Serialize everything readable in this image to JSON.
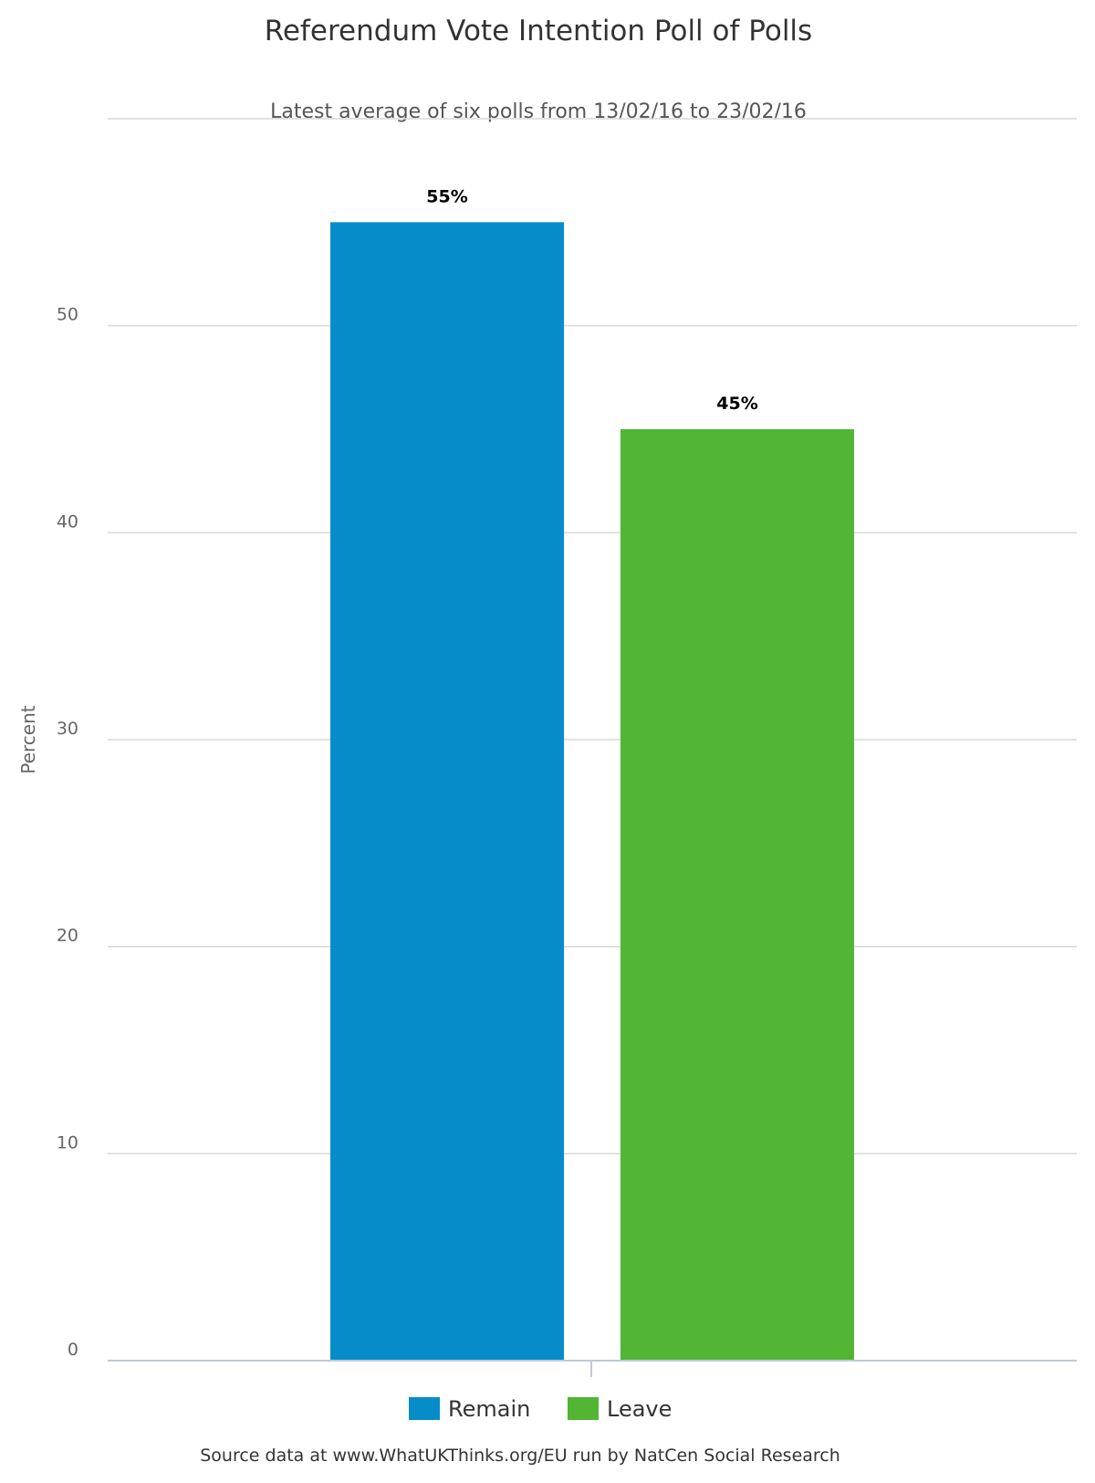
{
  "chart_data": {
    "type": "bar",
    "title": "Referendum Vote Intention Poll of Polls",
    "subtitle": "Latest average of six polls from 13/02/16 to 23/02/16",
    "ylabel": "Percent",
    "xlabel": "",
    "ylim": [
      0,
      60
    ],
    "yticks": [
      0,
      10,
      20,
      30,
      40,
      50
    ],
    "grid": true,
    "legend_position": "bottom",
    "series": [
      {
        "name": "Remain",
        "value": 55,
        "label": "55%",
        "color": "#068dc9"
      },
      {
        "name": "Leave",
        "value": 45,
        "label": "45%",
        "color": "#53b534"
      }
    ],
    "source": "Source data at www.WhatUKThinks.org/EU run by NatCen Social Research"
  }
}
